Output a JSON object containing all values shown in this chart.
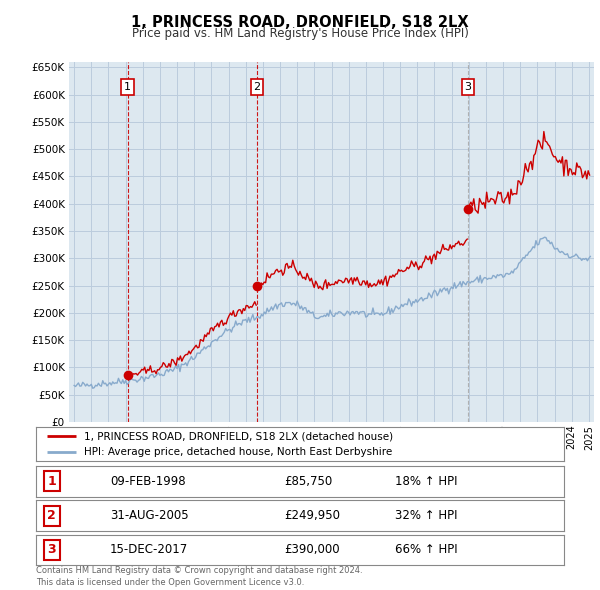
{
  "title": "1, PRINCESS ROAD, DRONFIELD, S18 2LX",
  "subtitle": "Price paid vs. HM Land Registry's House Price Index (HPI)",
  "ylim": [
    0,
    660000
  ],
  "yticks": [
    0,
    50000,
    100000,
    150000,
    200000,
    250000,
    300000,
    350000,
    400000,
    450000,
    500000,
    550000,
    600000,
    650000
  ],
  "xlim_start": 1994.7,
  "xlim_end": 2025.3,
  "sale_color": "#cc0000",
  "hpi_color": "#88aacc",
  "chart_bg": "#dde8f0",
  "sale_label": "1, PRINCESS ROAD, DRONFIELD, S18 2LX (detached house)",
  "hpi_label": "HPI: Average price, detached house, North East Derbyshire",
  "transactions": [
    {
      "num": 1,
      "date": "09-FEB-1998",
      "year": 1998.11,
      "price": 85750,
      "pct": "18%",
      "dir": "↑"
    },
    {
      "num": 2,
      "date": "31-AUG-2005",
      "year": 2005.66,
      "price": 249950,
      "pct": "32%",
      "dir": "↑"
    },
    {
      "num": 3,
      "date": "15-DEC-2017",
      "year": 2017.96,
      "price": 390000,
      "pct": "66%",
      "dir": "↑"
    }
  ],
  "footer": "Contains HM Land Registry data © Crown copyright and database right 2024.\nThis data is licensed under the Open Government Licence v3.0.",
  "background_color": "#ffffff",
  "grid_color": "#bbccdd"
}
